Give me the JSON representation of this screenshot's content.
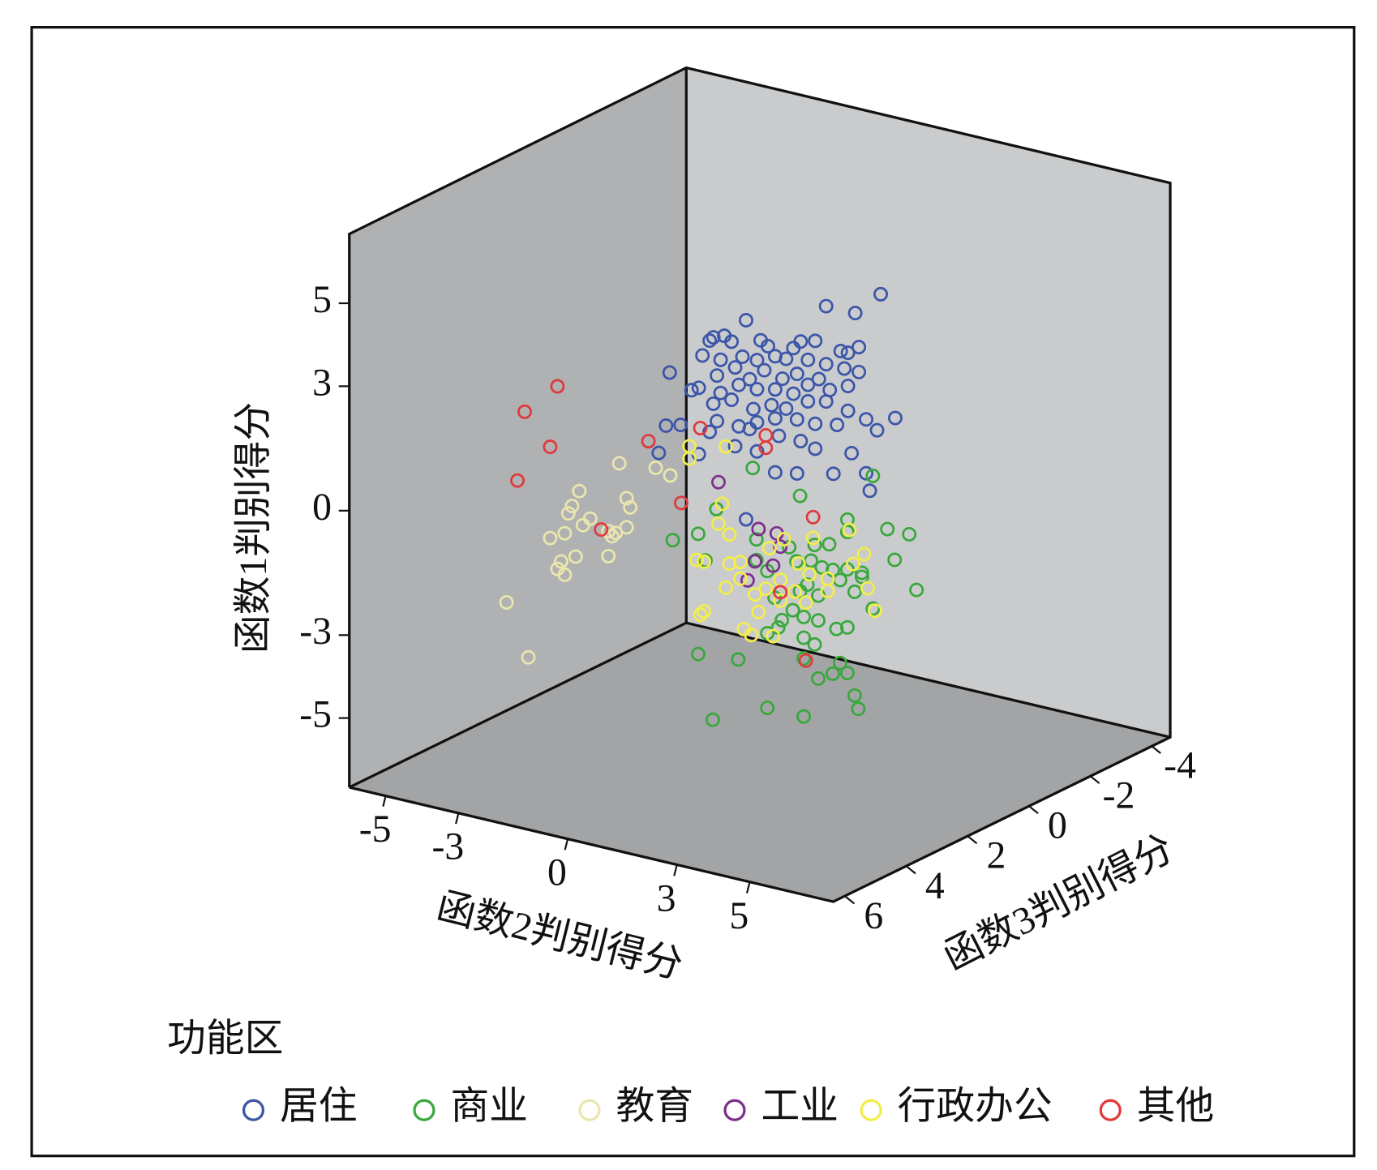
{
  "chart_data": {
    "type": "scatter3d",
    "x_label": "函数2判别得分",
    "y_label": "函数3判别得分",
    "z_label": "函数1判别得分",
    "legend_title": "功能区",
    "xlim": [
      -6,
      7.3
    ],
    "xticks": [
      -5,
      -3,
      0,
      3,
      5
    ],
    "ylim": [
      6.4,
      -4.6
    ],
    "yticks": [
      6,
      4,
      2,
      0,
      -2,
      -4
    ],
    "zlim": [
      -6.67,
      6.67
    ],
    "zticks": [
      5,
      3,
      0,
      -3,
      -5
    ],
    "series": [
      {
        "name": "居住",
        "color": "#3b55a8",
        "x": [
          4.9,
          3.4,
          4.2,
          1.2,
          0.3,
          0.6,
          0.2,
          0.8,
          1.6,
          1.8,
          2.5,
          2.7,
          3.1,
          4.3,
          0.0,
          0.5,
          1.1,
          1.5,
          2.0,
          2.3,
          2.9,
          3.8,
          4.0,
          3.4,
          -0.9,
          0.4,
          0.9,
          1.3,
          1.7,
          2.2,
          2.6,
          3.2,
          3.9,
          4.3,
          -0.1,
          0.5,
          1.0,
          1.5,
          2.0,
          2.5,
          2.9,
          3.5,
          4.0,
          0.3,
          0.8,
          1.4,
          1.9,
          2.3,
          2.9,
          3.4,
          4.0,
          0.4,
          1.0,
          1.5,
          2.0,
          2.6,
          3.1,
          3.7,
          4.5,
          5.3,
          4.8,
          -1.0,
          -0.6,
          0.2,
          1.3,
          2.1,
          2.7,
          3.1,
          4.1,
          -1.2,
          -0.1,
          0.9,
          1.5,
          2.0,
          2.6,
          3.6,
          4.5,
          4.6,
          1.2,
          -0.3
        ],
        "y": [
          2,
          2,
          2,
          2,
          2,
          2,
          2,
          2,
          2,
          2,
          2,
          2,
          2,
          2,
          2,
          2,
          2,
          2,
          2,
          2,
          2,
          2,
          2,
          2,
          2,
          2,
          2,
          2,
          2,
          2,
          2,
          2,
          2,
          2,
          2,
          2,
          2,
          2,
          2,
          2,
          2,
          2,
          2,
          2,
          2,
          2,
          2,
          2,
          2,
          2,
          2,
          2,
          2,
          2,
          2,
          2,
          2,
          2,
          2,
          2,
          2,
          2,
          2,
          2,
          2,
          2,
          2,
          2,
          2,
          2,
          2,
          2,
          2,
          2,
          2,
          2,
          2,
          2,
          2,
          2
        ],
        "z": [
          5.9,
          5.3,
          5.3,
          4.5,
          3.9,
          4.0,
          3.8,
          3.9,
          4.1,
          4.0,
          4.1,
          4.3,
          4.4,
          4.5,
          3.4,
          3.4,
          3.6,
          3.6,
          3.8,
          3.8,
          3.9,
          4.3,
          4.3,
          3.9,
          2.8,
          3.0,
          3.3,
          3.1,
          3.4,
          3.3,
          3.5,
          3.5,
          3.9,
          3.9,
          2.6,
          2.6,
          2.9,
          2.9,
          3.0,
          3.0,
          3.3,
          3.3,
          3.5,
          2.3,
          2.5,
          2.4,
          2.6,
          2.6,
          2.9,
          3.0,
          2.9,
          1.9,
          1.9,
          2.1,
          2.3,
          2.4,
          2.4,
          2.5,
          2.8,
          3.0,
          2.6,
          1.5,
          1.6,
          1.6,
          1.9,
          1.9,
          1.9,
          1.8,
          1.9,
          0.8,
          1.0,
          1.4,
          1.4,
          1.0,
          1.1,
          1.3,
          1.5,
          1.1,
          -0.3,
          2.5
        ]
      },
      {
        "name": "商业",
        "color": "#38a83c",
        "x": [
          3.0,
          -0.3,
          1.0,
          2.3,
          3.4,
          4.0,
          -1.3,
          -2.5,
          -1.8,
          -1.6,
          -0.2,
          0.7,
          1.4,
          1.8,
          2.3,
          3.6,
          4.2,
          -0.2,
          0.1,
          0.9,
          1.3,
          1.6,
          1.9,
          2.3,
          2.7,
          1.0,
          1.2,
          1.5,
          2.1,
          2.5,
          3.0,
          0.3,
          0.8,
          1.1,
          1.5,
          2.0,
          2.3,
          0.1,
          0.5,
          1.1,
          1.4,
          -0.7,
          -1.8,
          2.1,
          2.3,
          1.9,
          1.5,
          1.1,
          2.5,
          2.6,
          0.1,
          1.1,
          -1.4,
          0.4,
          2.7
        ],
        "y": [
          0,
          0,
          0,
          0,
          0,
          0,
          0,
          0,
          0,
          0,
          0,
          0,
          0,
          0,
          0,
          0,
          0,
          0,
          0,
          0,
          0,
          0,
          0,
          0,
          0,
          0,
          0,
          0,
          0,
          0,
          0,
          0,
          0,
          0,
          0,
          0,
          0,
          0,
          0,
          0,
          0,
          0,
          0,
          0,
          0,
          0,
          0,
          0,
          0,
          0,
          0,
          0,
          0,
          0,
          0
        ],
        "z": [
          0.4,
          -0.1,
          -0.5,
          -0.8,
          -0.8,
          -0.8,
          -1.3,
          -2.3,
          -2.0,
          -2.6,
          -1.8,
          -1.8,
          -1.6,
          -1.5,
          -1.1,
          -1.5,
          -2.1,
          -2.3,
          -2.5,
          -2.1,
          -2.0,
          -2.1,
          -2.1,
          -2.0,
          -2.0,
          -2.8,
          -2.6,
          -2.8,
          -2.3,
          -2.5,
          -2.8,
          -3.1,
          -3.3,
          -3.4,
          -3.4,
          -3.5,
          -3.4,
          -4.0,
          -3.6,
          -3.9,
          -4.0,
          -4.8,
          -4.9,
          -4.3,
          -4.5,
          -4.6,
          -4.8,
          -4.4,
          -5.0,
          -5.3,
          -5.8,
          -5.8,
          -6.4,
          -3.8,
          -2.1
        ]
      },
      {
        "name": "教育",
        "color": "#ebe6ad",
        "x": [
          -0.6,
          -1.7,
          -1.9,
          -0.4,
          -0.3,
          -2.0,
          -1.6,
          -1.4,
          -0.9,
          -0.7,
          -0.4,
          -2.5,
          -2.1,
          -2.2,
          -1.8,
          -0.9,
          -2.3,
          -2.1,
          -3.7,
          -3.1,
          0.8,
          0.4,
          -0.8
        ],
        "y": [
          4,
          4,
          4,
          4,
          4,
          4,
          4,
          4,
          4,
          4,
          4,
          4,
          4,
          4,
          4,
          4,
          4,
          4,
          4,
          4,
          4,
          4,
          4
        ],
        "z": [
          1.4,
          0.5,
          0.1,
          0.6,
          0.4,
          -0.1,
          -0.3,
          -0.1,
          -0.3,
          -0.3,
          -0.1,
          -0.8,
          -0.6,
          -1.3,
          -1.1,
          -0.9,
          -1.5,
          -1.6,
          -2.6,
          -3.8,
          1.4,
          1.5,
          -0.4
        ]
      },
      {
        "name": "工业",
        "color": "#7d2f8c",
        "x": [
          -0.4,
          0.7,
          1.2,
          0.6,
          1.3,
          0.4,
          1.1
        ],
        "y": [
          1,
          1,
          1,
          1,
          1,
          1,
          1
        ],
        "z": [
          -0.1,
          -1.0,
          -1.0,
          -1.8,
          -1.3,
          -2.3,
          -1.8
        ]
      },
      {
        "name": "行政办公",
        "color": "#f2ee4a",
        "x": [
          -1.2,
          -1.2,
          -0.2,
          -0.3,
          -0.4,
          -0.1,
          -1.0,
          -0.1,
          0.2,
          1.0,
          1.4,
          1.8,
          2.1,
          2.6,
          3.2,
          3.6,
          3.7,
          3.9,
          0.2,
          -0.2,
          0.6,
          0.9,
          1.3,
          1.7,
          2.6,
          -0.9,
          -0.8,
          0.7,
          1.3,
          2.0,
          0.3,
          0.5,
          1.1,
          2.2,
          3.3,
          -0.8
        ],
        "y": [
          1,
          1,
          1,
          1,
          1,
          1,
          1,
          1,
          1,
          1,
          1,
          1,
          1,
          1,
          1,
          1,
          1,
          1,
          1,
          1,
          1,
          1,
          1,
          1,
          1,
          1,
          1,
          1,
          1,
          1,
          1,
          1,
          1,
          1,
          1,
          1
        ],
        "z": [
          0.6,
          0.3,
          0.8,
          -0.6,
          -1.1,
          -1.3,
          -2.1,
          -2.0,
          -1.9,
          -1.4,
          -1.1,
          -1.6,
          -1.8,
          -1.8,
          -0.5,
          -1.0,
          -1.8,
          -2.3,
          -2.3,
          -2.6,
          -2.6,
          -2.4,
          -2.1,
          -2.3,
          -2.1,
          -3.4,
          -3.3,
          -3.0,
          -2.6,
          -2.5,
          -3.5,
          -3.6,
          -3.5,
          -0.9,
          -1.3,
          -2.1
        ]
      },
      {
        "name": "其他",
        "color": "#e0393c",
        "x": [
          -2.3,
          -3.2,
          -2.5,
          -3.4,
          0.2,
          1.1,
          -1.1,
          -0.9,
          0.9,
          0.9,
          2.2,
          1.3,
          2.0
        ],
        "y": [
          4,
          4,
          4,
          4,
          4,
          4,
          4,
          1,
          1,
          1,
          1,
          1,
          1
        ],
        "z": [
          2.9,
          2.1,
          1.4,
          0.4,
          2.1,
          0.8,
          -0.3,
          1.1,
          1.3,
          1.0,
          -0.4,
          -2.4,
          -3.9
        ]
      }
    ]
  }
}
